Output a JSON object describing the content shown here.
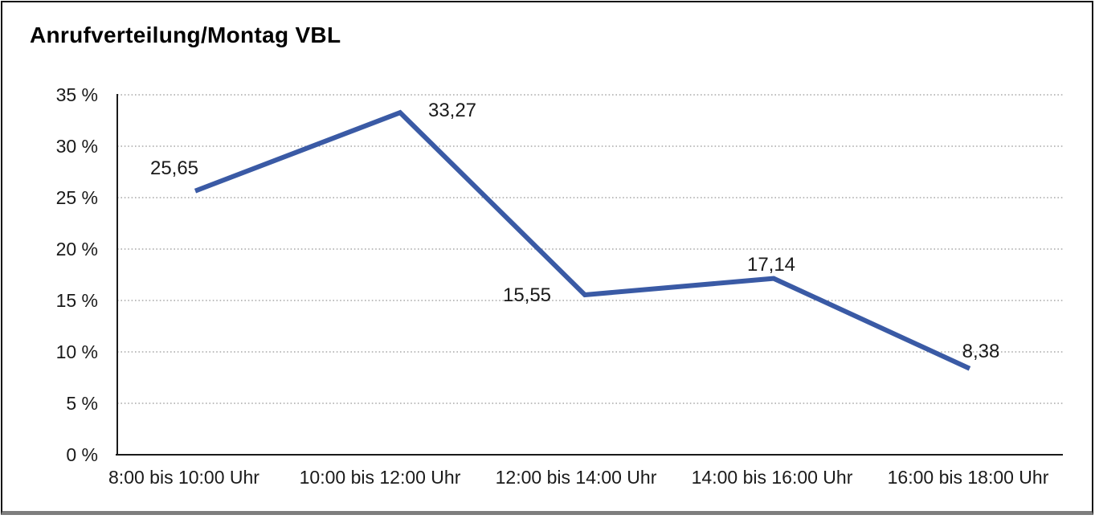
{
  "title": "Anrufverteilung/Montag VBL",
  "chart_data": {
    "type": "line",
    "title": "Anrufverteilung/Montag VBL",
    "categories": [
      "8:00 bis 10:00 Uhr",
      "10:00 bis 12:00 Uhr",
      "12:00 bis 14:00 Uhr",
      "14:00 bis 16:00 Uhr",
      "16:00 bis 18:00 Uhr"
    ],
    "series": [
      {
        "name": "Anrufverteilung Montag VBL",
        "values": [
          25.65,
          33.27,
          15.55,
          17.14,
          8.38
        ]
      }
    ],
    "value_labels": [
      "25,65",
      "33,27",
      "15,55",
      "17,14",
      "8,38"
    ],
    "y_tick_values": [
      35,
      30,
      25,
      20,
      15,
      10,
      5,
      0
    ],
    "y_tick_labels": [
      "35 %",
      "30 %",
      "25 %",
      "20 %",
      "15 %",
      "10 %",
      "5 %",
      "0 %"
    ],
    "ylim": [
      0,
      35
    ],
    "xlabel": "",
    "ylabel": "",
    "grid": "horizontal-dotted",
    "legend": "none",
    "line_color": "#3a5aa5",
    "axis_color": "#1a1a1a",
    "grid_color": "#989898",
    "text_color": "#1a1a1a"
  }
}
